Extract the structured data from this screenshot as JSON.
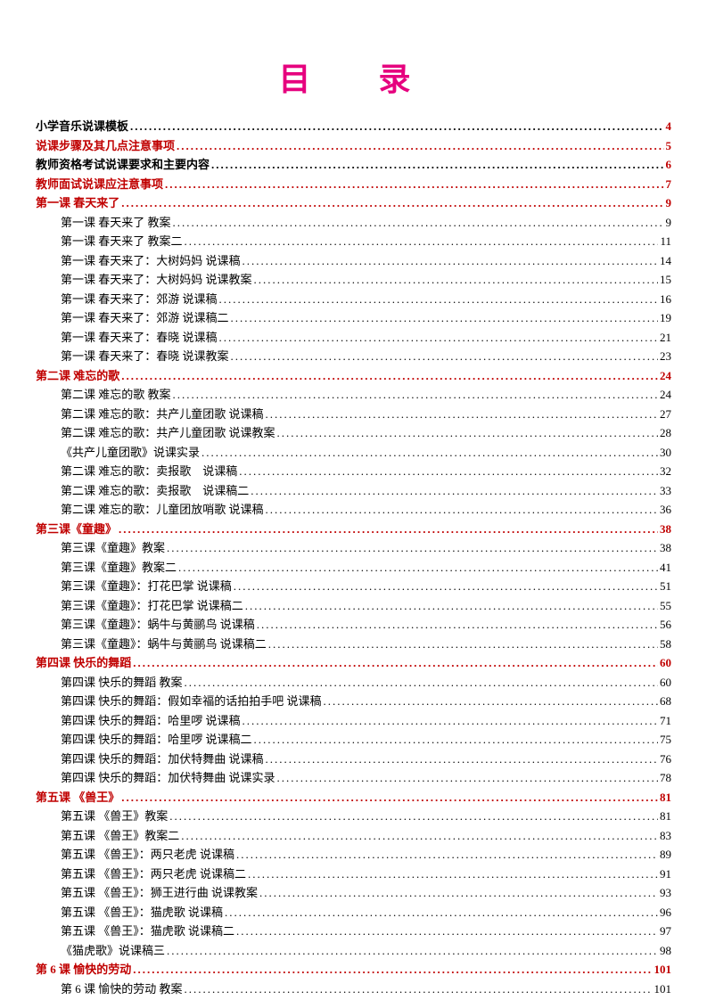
{
  "title": "目　录",
  "title_color": "#e6007e",
  "title_fontsize": 36,
  "level0_color": "#c00000",
  "level0_color_black": "#000000",
  "level1_color": "#000000",
  "page_color_level0": "#c00000",
  "background_color": "#ffffff",
  "font_family": "SimSun",
  "entries": [
    {
      "level": 0,
      "label": "小学音乐说课模板",
      "page": "4",
      "black": true
    },
    {
      "level": 0,
      "label": "说课步骤及其几点注意事项",
      "page": "5",
      "black": false
    },
    {
      "level": 0,
      "label": "教师资格考试说课要求和主要内容",
      "page": "6",
      "black": true
    },
    {
      "level": 0,
      "label": "教师面试说课应注意事项",
      "page": "7",
      "black": false
    },
    {
      "level": 0,
      "label": "第一课  春天来了",
      "page": "9",
      "black": false
    },
    {
      "level": 1,
      "label": "第一课  春天来了  教案",
      "page": "9"
    },
    {
      "level": 1,
      "label": "第一课  春天来了  教案二",
      "page": "11"
    },
    {
      "level": 1,
      "label": "第一课  春天来了：大树妈妈  说课稿",
      "page": "14"
    },
    {
      "level": 1,
      "label": "第一课  春天来了：大树妈妈  说课教案",
      "page": "15"
    },
    {
      "level": 1,
      "label": "第一课  春天来了：郊游  说课稿",
      "page": "16"
    },
    {
      "level": 1,
      "label": "第一课  春天来了：郊游  说课稿二",
      "page": "19"
    },
    {
      "level": 1,
      "label": "第一课  春天来了：春晓  说课稿",
      "page": "21"
    },
    {
      "level": 1,
      "label": "第一课  春天来了：春晓  说课教案",
      "page": "23"
    },
    {
      "level": 0,
      "label": "第二课 难忘的歌",
      "page": "24",
      "black": false
    },
    {
      "level": 1,
      "label": "第二课  难忘的歌  教案",
      "page": "24"
    },
    {
      "level": 1,
      "label": "第二课  难忘的歌：共产儿童团歌  说课稿",
      "page": "27"
    },
    {
      "level": 1,
      "label": "第二课  难忘的歌：共产儿童团歌  说课教案",
      "page": "28"
    },
    {
      "level": 1,
      "label": "《共产儿童团歌》说课实录",
      "page": "30"
    },
    {
      "level": 1,
      "label": "第二课  难忘的歌：卖报歌　说课稿",
      "page": "32"
    },
    {
      "level": 1,
      "label": "第二课  难忘的歌：卖报歌　说课稿二",
      "page": "33"
    },
    {
      "level": 1,
      "label": "第二课  难忘的歌：儿童团放哨歌  说课稿",
      "page": "36"
    },
    {
      "level": 0,
      "label": "第三课《童趣》",
      "page": "38",
      "black": false
    },
    {
      "level": 1,
      "label": "第三课《童趣》教案",
      "page": "38"
    },
    {
      "level": 1,
      "label": "第三课《童趣》教案二",
      "page": "41"
    },
    {
      "level": 1,
      "label": "第三课《童趣》：打花巴掌  说课稿",
      "page": "51"
    },
    {
      "level": 1,
      "label": "第三课《童趣》：打花巴掌  说课稿二",
      "page": "55"
    },
    {
      "level": 1,
      "label": "第三课《童趣》：蜗牛与黄鹂鸟  说课稿",
      "page": "56"
    },
    {
      "level": 1,
      "label": "第三课《童趣》：蜗牛与黄鹂鸟  说课稿二",
      "page": "58"
    },
    {
      "level": 0,
      "label": "第四课 快乐的舞蹈",
      "page": "60",
      "black": false
    },
    {
      "level": 1,
      "label": "第四课  快乐的舞蹈  教案",
      "page": "60"
    },
    {
      "level": 1,
      "label": "第四课  快乐的舞蹈：假如幸福的话拍拍手吧  说课稿",
      "page": "68"
    },
    {
      "level": 1,
      "label": "第四课  快乐的舞蹈：哈里啰  说课稿",
      "page": "71"
    },
    {
      "level": 1,
      "label": "第四课  快乐的舞蹈：哈里啰  说课稿二",
      "page": "75"
    },
    {
      "level": 1,
      "label": "第四课  快乐的舞蹈：加伏特舞曲  说课稿",
      "page": "76"
    },
    {
      "level": 1,
      "label": "第四课  快乐的舞蹈：加伏特舞曲  说课实录",
      "page": "78"
    },
    {
      "level": 0,
      "label": "第五课 《兽王》",
      "page": "81",
      "black": false
    },
    {
      "level": 1,
      "label": "第五课  《兽王》教案",
      "page": "81"
    },
    {
      "level": 1,
      "label": "第五课  《兽王》教案二",
      "page": "83"
    },
    {
      "level": 1,
      "label": "第五课  《兽王》：两只老虎  说课稿",
      "page": "89"
    },
    {
      "level": 1,
      "label": "第五课  《兽王》：两只老虎  说课稿二",
      "page": "91"
    },
    {
      "level": 1,
      "label": "第五课  《兽王》：狮王进行曲  说课教案",
      "page": "93"
    },
    {
      "level": 1,
      "label": "第五课  《兽王》：猫虎歌  说课稿",
      "page": "96"
    },
    {
      "level": 1,
      "label": "第五课  《兽王》：猫虎歌  说课稿二",
      "page": "97"
    },
    {
      "level": 1,
      "label": "《猫虎歌》说课稿三",
      "page": "98"
    },
    {
      "level": 0,
      "label": "第 6 课  愉快的劳动",
      "page": "101",
      "black": false
    },
    {
      "level": 1,
      "label": "第 6 课  愉快的劳动  教案",
      "page": "101"
    }
  ]
}
